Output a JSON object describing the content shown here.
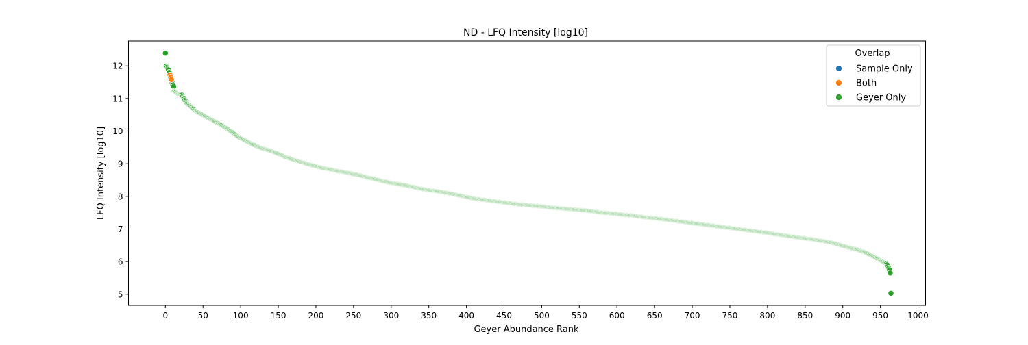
{
  "chart_data": {
    "type": "scatter",
    "title": "ND - LFQ Intensity [log10]",
    "xlabel": "Geyer Abundance Rank",
    "ylabel": "LFQ Intensity [log10]",
    "xlim": [
      -49,
      1010
    ],
    "ylim": [
      4.66,
      12.76
    ],
    "xticks": [
      0,
      50,
      100,
      150,
      200,
      250,
      300,
      350,
      400,
      450,
      500,
      550,
      600,
      650,
      700,
      750,
      800,
      850,
      900,
      950,
      1000
    ],
    "yticks": [
      5,
      6,
      7,
      8,
      9,
      10,
      11,
      12
    ],
    "grid": false,
    "legend": {
      "title": "Overlap",
      "placement": "top-right",
      "entries": [
        {
          "label": "Sample Only",
          "color": "#1f77b4"
        },
        {
          "label": "Both",
          "color": "#ff7f0e"
        },
        {
          "label": "Geyer Only",
          "color": "#2ca02c"
        }
      ]
    },
    "series": [
      {
        "name": "Both",
        "color": "#ff7f0e",
        "x": [
          6,
          7,
          8
        ],
        "y": [
          11.72,
          11.65,
          11.58
        ]
      },
      {
        "name": "Geyer Only",
        "color": "#2ca02c",
        "x": [
          0,
          1,
          2,
          4,
          5,
          9,
          10,
          11,
          12,
          14,
          16,
          18,
          20,
          22,
          24,
          25,
          26,
          28,
          30,
          32,
          35,
          38,
          40,
          45,
          50,
          55,
          60,
          65,
          70,
          75,
          80,
          85,
          90,
          95,
          100,
          105,
          110,
          115,
          120,
          125,
          130,
          140,
          150,
          160,
          170,
          180,
          190,
          200,
          210,
          220,
          230,
          240,
          250,
          260,
          270,
          280,
          290,
          300,
          310,
          320,
          330,
          340,
          350,
          360,
          370,
          380,
          390,
          400,
          410,
          420,
          430,
          440,
          450,
          460,
          470,
          480,
          490,
          500,
          510,
          520,
          530,
          540,
          550,
          560,
          570,
          580,
          590,
          600,
          610,
          620,
          630,
          640,
          650,
          660,
          670,
          680,
          690,
          700,
          710,
          720,
          730,
          740,
          750,
          760,
          770,
          780,
          790,
          800,
          810,
          820,
          830,
          840,
          850,
          860,
          870,
          880,
          890,
          900,
          905,
          910,
          915,
          920,
          925,
          930,
          935,
          940,
          945,
          950,
          953,
          956,
          958,
          959,
          960,
          961,
          962,
          963,
          964
        ],
        "y": [
          12.39,
          11.99,
          11.95,
          11.88,
          11.8,
          11.48,
          11.42,
          11.37,
          11.22,
          11.18,
          11.15,
          11.13,
          11.12,
          11.1,
          11.02,
          11.0,
          10.95,
          10.87,
          10.82,
          10.78,
          10.72,
          10.67,
          10.62,
          10.55,
          10.49,
          10.42,
          10.36,
          10.3,
          10.24,
          10.18,
          10.1,
          10.02,
          9.95,
          9.85,
          9.78,
          9.72,
          9.66,
          9.6,
          9.55,
          9.5,
          9.46,
          9.39,
          9.3,
          9.2,
          9.12,
          9.05,
          8.98,
          8.92,
          8.86,
          8.82,
          8.77,
          8.73,
          8.68,
          8.63,
          8.57,
          8.52,
          8.46,
          8.41,
          8.37,
          8.33,
          8.28,
          8.23,
          8.19,
          8.16,
          8.12,
          8.08,
          8.03,
          7.98,
          7.93,
          7.9,
          7.87,
          7.84,
          7.81,
          7.78,
          7.75,
          7.73,
          7.71,
          7.69,
          7.66,
          7.64,
          7.62,
          7.6,
          7.58,
          7.56,
          7.53,
          7.5,
          7.48,
          7.46,
          7.43,
          7.41,
          7.38,
          7.35,
          7.33,
          7.3,
          7.27,
          7.24,
          7.21,
          7.18,
          7.15,
          7.12,
          7.09,
          7.06,
          7.03,
          7.0,
          6.97,
          6.94,
          6.91,
          6.88,
          6.84,
          6.81,
          6.77,
          6.74,
          6.71,
          6.68,
          6.64,
          6.6,
          6.55,
          6.48,
          6.45,
          6.42,
          6.39,
          6.36,
          6.32,
          6.28,
          6.22,
          6.16,
          6.1,
          6.03,
          6.0,
          5.96,
          5.93,
          5.9,
          5.85,
          5.8,
          5.75,
          5.65,
          5.03
        ]
      }
    ]
  }
}
